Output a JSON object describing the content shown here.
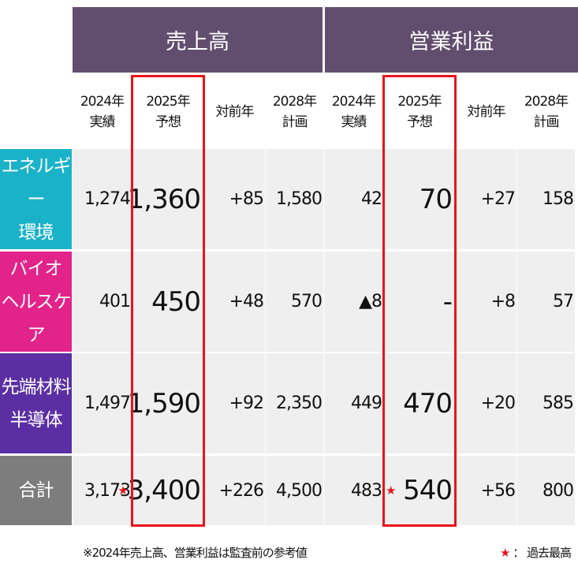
{
  "groups": [
    {
      "label": "売上高"
    },
    {
      "label": "営業利益"
    }
  ],
  "subheaders": [
    [
      "2024年",
      "実績"
    ],
    [
      "2025年",
      "予想"
    ],
    [
      "対前年",
      ""
    ],
    [
      "2028年",
      "計画"
    ],
    [
      "2024年",
      "実績"
    ],
    [
      "2025年",
      "予想"
    ],
    [
      "対前年",
      ""
    ],
    [
      "2028年",
      "計画"
    ]
  ],
  "rows": [
    {
      "label_lines": [
        "エネルギー",
        "環境"
      ],
      "color": "#1ab2c8",
      "cells": [
        "1,274",
        "1,360",
        "+85",
        "1,580",
        "42",
        "70",
        "+27",
        "158"
      ]
    },
    {
      "label_lines": [
        "バイオ",
        "ヘルスケア"
      ],
      "color": "#e2238a",
      "cells": [
        "401",
        "450",
        "+48",
        "570",
        "▲8",
        "-",
        "+8",
        "57"
      ]
    },
    {
      "label_lines": [
        "先端材料",
        "半導体"
      ],
      "color": "#5b2fa3",
      "cells": [
        "1,497",
        "1,590",
        "+92",
        "2,350",
        "449",
        "470",
        "+20",
        "585"
      ]
    },
    {
      "label_lines": [
        "合計"
      ],
      "color": "#7d7d7d",
      "cells": [
        "3,173",
        "3,400",
        "+226",
        "4,500",
        "483",
        "540",
        "+56",
        "800"
      ]
    }
  ],
  "star_symbol": "★",
  "footnote": "※2024年売上高、営業利益は監査前の参考値",
  "legend": {
    "symbol": "★",
    "text": "： 過去最高"
  },
  "colors": {
    "header_bg": "#614d6e",
    "highlight": "#e8141c",
    "cell_bg": "#efefef"
  }
}
